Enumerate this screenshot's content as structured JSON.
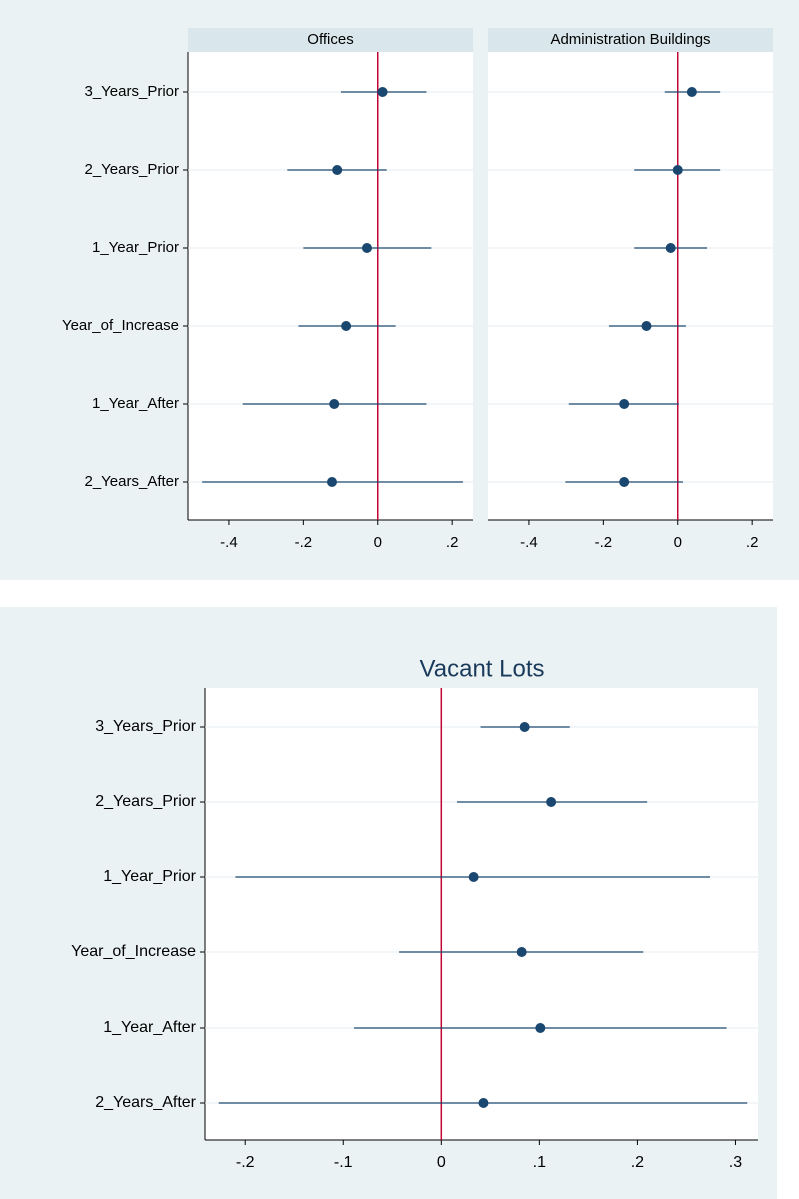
{
  "chart_data": [
    {
      "type": "coefplot",
      "title": "Offices",
      "categories": [
        "3_Years_Prior",
        "2_Years_Prior",
        "1_Year_Prior",
        "Year_of_Increase",
        "1_Year_After",
        "2_Years_After"
      ],
      "values": [
        0.013,
        -0.109,
        -0.029,
        -0.085,
        -0.117,
        -0.123
      ],
      "low": [
        -0.099,
        -0.243,
        -0.2,
        -0.213,
        -0.363,
        -0.472
      ],
      "high": [
        0.131,
        0.024,
        0.144,
        0.048,
        0.131,
        0.229
      ],
      "color": "#1a476f",
      "refline": 0,
      "refline_color": "#c10534",
      "xlim": [
        -0.51,
        0.256
      ],
      "xticks": [
        {
          "value": -0.4,
          "label": "-.4"
        },
        {
          "value": -0.2,
          "label": "-.2"
        },
        0,
        {
          "value": 0.2,
          "label": ".2"
        }
      ],
      "grid": true
    },
    {
      "type": "coefplot",
      "title": "Administration Buildings",
      "values": [
        0.038,
        0.0,
        -0.019,
        -0.084,
        -0.144,
        -0.144
      ],
      "low": [
        -0.035,
        -0.117,
        -0.117,
        -0.185,
        -0.293,
        -0.302
      ],
      "high": [
        0.114,
        0.114,
        0.079,
        0.022,
        0.003,
        0.014
      ],
      "color": "#1a476f",
      "refline": 0,
      "refline_color": "#c10534",
      "xlim": [
        -0.51,
        0.256
      ],
      "xticks": [
        {
          "value": -0.4,
          "label": "-.4"
        },
        {
          "value": -0.2,
          "label": "-.2"
        },
        0,
        {
          "value": 0.2,
          "label": ".2"
        }
      ],
      "grid": true
    },
    {
      "type": "coefplot",
      "title": "Vacant Lots",
      "categories": [
        "3_Years_Prior",
        "2_Years_Prior",
        "1_Year_Prior",
        "Year_of_Increase",
        "1_Year_After",
        "2_Years_After"
      ],
      "values": [
        0.085,
        0.112,
        0.033,
        0.082,
        0.101,
        0.043
      ],
      "low": [
        0.04,
        0.016,
        -0.21,
        -0.043,
        -0.089,
        -0.227
      ],
      "high": [
        0.131,
        0.21,
        0.274,
        0.206,
        0.291,
        0.312
      ],
      "color": "#1a476f",
      "refline": 0,
      "refline_color": "#c10534",
      "xlim": [
        -0.241,
        0.323
      ],
      "xticks": [
        {
          "value": -0.2,
          "label": "-.2"
        },
        {
          "value": -0.1,
          "label": "-.1"
        },
        0,
        {
          "value": 0.1,
          "label": ".1"
        },
        {
          "value": 0.2,
          "label": ".2"
        },
        {
          "value": 0.3,
          "label": ".3"
        }
      ],
      "grid": true
    }
  ]
}
